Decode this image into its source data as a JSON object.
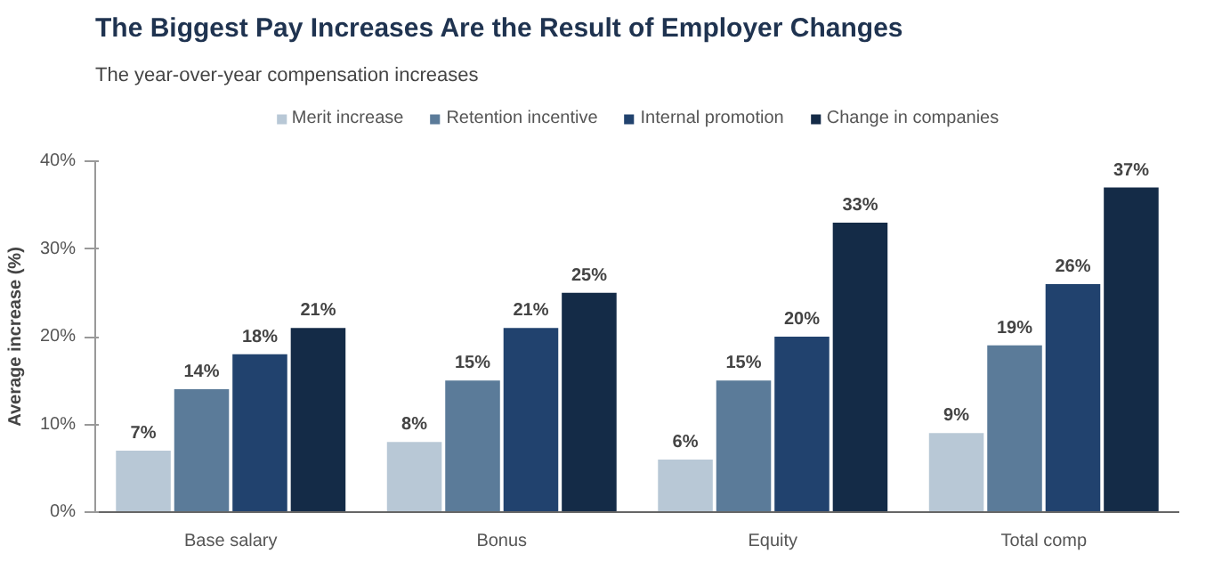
{
  "chart_data": {
    "type": "bar",
    "title": "The Biggest Pay Increases Are the Result of Employer Changes",
    "subtitle": "The year-over-year compensation increases",
    "ylabel": "Average increase (%)",
    "categories": [
      "Base salary",
      "Bonus",
      "Equity",
      "Total comp"
    ],
    "series": [
      {
        "name": "Merit increase",
        "color": "#b8c8d6",
        "values": [
          7,
          8,
          6,
          9
        ],
        "value_labels": [
          "7%",
          "8%",
          "6%",
          "9%"
        ]
      },
      {
        "name": "Retention incentive",
        "color": "#5b7b99",
        "values": [
          14,
          15,
          15,
          19
        ],
        "value_labels": [
          "14%",
          "15%",
          "15%",
          "19%"
        ]
      },
      {
        "name": "Internal promotion",
        "color": "#21426e",
        "values": [
          18,
          21,
          20,
          26
        ],
        "value_labels": [
          "18%",
          "21%",
          "20%",
          "26%"
        ]
      },
      {
        "name": "Change in companies",
        "color": "#142b47",
        "values": [
          21,
          25,
          33,
          37
        ],
        "value_labels": [
          "21%",
          "25%",
          "33%",
          "37%"
        ]
      }
    ],
    "ylim": [
      0,
      40
    ],
    "yticks": [
      {
        "value": 0,
        "label": "0%"
      },
      {
        "value": 10,
        "label": "10%"
      },
      {
        "value": 20,
        "label": "20%"
      },
      {
        "value": 30,
        "label": "30%"
      },
      {
        "value": 40,
        "label": "40%"
      }
    ],
    "grid": false,
    "legend": "top"
  }
}
